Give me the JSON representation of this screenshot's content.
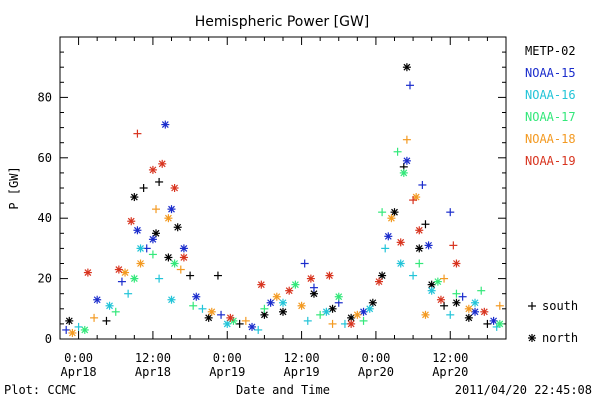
{
  "chart_data": {
    "type": "scatter",
    "title": "Hemispheric Power [GW]",
    "ylabel": "P [GW]",
    "xlabel": "Date and Time",
    "footer_left": "Plot: CCMC",
    "footer_right": "2011/04/20 22:45:08",
    "ylim": [
      0,
      100
    ],
    "yticks": [
      0,
      20,
      40,
      60,
      80
    ],
    "xlim_hours": [
      -3,
      69
    ],
    "xticks": [
      {
        "hour": 0,
        "time": "0:00",
        "date": "Apr18"
      },
      {
        "hour": 12,
        "time": "12:00",
        "date": "Apr18"
      },
      {
        "hour": 24,
        "time": "0:00",
        "date": "Apr19"
      },
      {
        "hour": 36,
        "time": "12:00",
        "date": "Apr19"
      },
      {
        "hour": 48,
        "time": "0:00",
        "date": "Apr20"
      },
      {
        "hour": 60,
        "time": "12:00",
        "date": "Apr20"
      }
    ],
    "legend": {
      "placement": "right",
      "marker_south_label": "south",
      "marker_north_label": "north"
    },
    "series": [
      {
        "name": "METP-02",
        "color": "#000000",
        "values": [
          {
            "x": -1.5,
            "y": 6,
            "m": "x"
          },
          {
            "x": 4.5,
            "y": 6,
            "m": "+"
          },
          {
            "x": 9,
            "y": 47,
            "m": "x"
          },
          {
            "x": 10.5,
            "y": 50,
            "m": "+"
          },
          {
            "x": 12.5,
            "y": 35,
            "m": "x"
          },
          {
            "x": 13,
            "y": 52,
            "m": "+"
          },
          {
            "x": 14.5,
            "y": 27,
            "m": "x"
          },
          {
            "x": 16,
            "y": 37,
            "m": "x"
          },
          {
            "x": 18,
            "y": 21,
            "m": "+"
          },
          {
            "x": 22.5,
            "y": 21,
            "m": "+"
          },
          {
            "x": 21,
            "y": 7,
            "m": "x"
          },
          {
            "x": 26,
            "y": 5,
            "m": "+"
          },
          {
            "x": 30,
            "y": 8,
            "m": "x"
          },
          {
            "x": 33,
            "y": 9,
            "m": "x"
          },
          {
            "x": 38,
            "y": 15,
            "m": "x"
          },
          {
            "x": 41,
            "y": 10,
            "m": "x"
          },
          {
            "x": 44,
            "y": 7,
            "m": "x"
          },
          {
            "x": 47.5,
            "y": 12,
            "m": "x"
          },
          {
            "x": 49,
            "y": 21,
            "m": "x"
          },
          {
            "x": 51,
            "y": 42,
            "m": "x"
          },
          {
            "x": 52.5,
            "y": 57,
            "m": "+"
          },
          {
            "x": 53,
            "y": 90,
            "m": "x"
          },
          {
            "x": 55,
            "y": 30,
            "m": "x"
          },
          {
            "x": 56,
            "y": 38,
            "m": "+"
          },
          {
            "x": 57,
            "y": 18,
            "m": "x"
          },
          {
            "x": 59,
            "y": 11,
            "m": "+"
          },
          {
            "x": 61,
            "y": 12,
            "m": "x"
          },
          {
            "x": 63,
            "y": 7,
            "m": "x"
          },
          {
            "x": 66,
            "y": 5,
            "m": "+"
          }
        ]
      },
      {
        "name": "NOAA-15",
        "color": "#1a2ccc",
        "values": [
          {
            "x": -2,
            "y": 3,
            "m": "+"
          },
          {
            "x": 3,
            "y": 13,
            "m": "x"
          },
          {
            "x": 7,
            "y": 19,
            "m": "+"
          },
          {
            "x": 9.5,
            "y": 36,
            "m": "x"
          },
          {
            "x": 11,
            "y": 30,
            "m": "+"
          },
          {
            "x": 12,
            "y": 33,
            "m": "x"
          },
          {
            "x": 14,
            "y": 71,
            "m": "x"
          },
          {
            "x": 15,
            "y": 43,
            "m": "x"
          },
          {
            "x": 17,
            "y": 30,
            "m": "x"
          },
          {
            "x": 19,
            "y": 14,
            "m": "x"
          },
          {
            "x": 23,
            "y": 8,
            "m": "+"
          },
          {
            "x": 28,
            "y": 4,
            "m": "x"
          },
          {
            "x": 31,
            "y": 12,
            "m": "x"
          },
          {
            "x": 36.5,
            "y": 25,
            "m": "+"
          },
          {
            "x": 38,
            "y": 17,
            "m": "+"
          },
          {
            "x": 42,
            "y": 12,
            "m": "+"
          },
          {
            "x": 46,
            "y": 9,
            "m": "x"
          },
          {
            "x": 50,
            "y": 34,
            "m": "x"
          },
          {
            "x": 53,
            "y": 59,
            "m": "x"
          },
          {
            "x": 53.5,
            "y": 84,
            "m": "+"
          },
          {
            "x": 55.5,
            "y": 51,
            "m": "+"
          },
          {
            "x": 56.5,
            "y": 31,
            "m": "x"
          },
          {
            "x": 60,
            "y": 42,
            "m": "+"
          },
          {
            "x": 62,
            "y": 14,
            "m": "+"
          },
          {
            "x": 64,
            "y": 9,
            "m": "x"
          },
          {
            "x": 67,
            "y": 6,
            "m": "x"
          }
        ]
      },
      {
        "name": "NOAA-16",
        "color": "#22c4d8",
        "values": [
          {
            "x": 0,
            "y": 4,
            "m": "+"
          },
          {
            "x": 5,
            "y": 11,
            "m": "x"
          },
          {
            "x": 8,
            "y": 15,
            "m": "+"
          },
          {
            "x": 10,
            "y": 30,
            "m": "x"
          },
          {
            "x": 13,
            "y": 20,
            "m": "+"
          },
          {
            "x": 15,
            "y": 13,
            "m": "x"
          },
          {
            "x": 20,
            "y": 10,
            "m": "+"
          },
          {
            "x": 24,
            "y": 5,
            "m": "x"
          },
          {
            "x": 29,
            "y": 3,
            "m": "+"
          },
          {
            "x": 33,
            "y": 12,
            "m": "x"
          },
          {
            "x": 37,
            "y": 6,
            "m": "+"
          },
          {
            "x": 40,
            "y": 9,
            "m": "x"
          },
          {
            "x": 43,
            "y": 5,
            "m": "+"
          },
          {
            "x": 47,
            "y": 10,
            "m": "x"
          },
          {
            "x": 49.5,
            "y": 30,
            "m": "+"
          },
          {
            "x": 52,
            "y": 25,
            "m": "x"
          },
          {
            "x": 54,
            "y": 21,
            "m": "+"
          },
          {
            "x": 57,
            "y": 16,
            "m": "x"
          },
          {
            "x": 60,
            "y": 8,
            "m": "+"
          },
          {
            "x": 64,
            "y": 12,
            "m": "x"
          },
          {
            "x": 67.5,
            "y": 4,
            "m": "+"
          }
        ]
      },
      {
        "name": "NOAA-17",
        "color": "#33e87a",
        "values": [
          {
            "x": 1,
            "y": 3,
            "m": "x"
          },
          {
            "x": 6,
            "y": 9,
            "m": "+"
          },
          {
            "x": 9,
            "y": 20,
            "m": "x"
          },
          {
            "x": 12,
            "y": 28,
            "m": "+"
          },
          {
            "x": 15.5,
            "y": 25,
            "m": "x"
          },
          {
            "x": 18.5,
            "y": 11,
            "m": "+"
          },
          {
            "x": 25,
            "y": 6,
            "m": "x"
          },
          {
            "x": 30,
            "y": 10,
            "m": "+"
          },
          {
            "x": 35,
            "y": 18,
            "m": "x"
          },
          {
            "x": 39,
            "y": 8,
            "m": "+"
          },
          {
            "x": 42,
            "y": 14,
            "m": "x"
          },
          {
            "x": 46,
            "y": 6,
            "m": "+"
          },
          {
            "x": 49,
            "y": 42,
            "m": "+"
          },
          {
            "x": 51.5,
            "y": 62,
            "m": "+"
          },
          {
            "x": 52.5,
            "y": 55,
            "m": "x"
          },
          {
            "x": 55,
            "y": 25,
            "m": "+"
          },
          {
            "x": 58,
            "y": 19,
            "m": "x"
          },
          {
            "x": 61,
            "y": 15,
            "m": "+"
          },
          {
            "x": 65,
            "y": 16,
            "m": "+"
          },
          {
            "x": 68,
            "y": 5,
            "m": "x"
          }
        ]
      },
      {
        "name": "NOAA-18",
        "color": "#f39a22",
        "values": [
          {
            "x": -1,
            "y": 2,
            "m": "x"
          },
          {
            "x": 2.5,
            "y": 7,
            "m": "+"
          },
          {
            "x": 7.5,
            "y": 22,
            "m": "x"
          },
          {
            "x": 10,
            "y": 25,
            "m": "x"
          },
          {
            "x": 12.5,
            "y": 43,
            "m": "+"
          },
          {
            "x": 14.5,
            "y": 40,
            "m": "x"
          },
          {
            "x": 16.5,
            "y": 23,
            "m": "+"
          },
          {
            "x": 21.5,
            "y": 9,
            "m": "x"
          },
          {
            "x": 27,
            "y": 6,
            "m": "+"
          },
          {
            "x": 32,
            "y": 14,
            "m": "x"
          },
          {
            "x": 36,
            "y": 11,
            "m": "x"
          },
          {
            "x": 41,
            "y": 5,
            "m": "+"
          },
          {
            "x": 45,
            "y": 8,
            "m": "x"
          },
          {
            "x": 50.5,
            "y": 40,
            "m": "x"
          },
          {
            "x": 53,
            "y": 66,
            "m": "+"
          },
          {
            "x": 54.5,
            "y": 47,
            "m": "x"
          },
          {
            "x": 56,
            "y": 8,
            "m": "x"
          },
          {
            "x": 59,
            "y": 20,
            "m": "+"
          },
          {
            "x": 63,
            "y": 10,
            "m": "x"
          },
          {
            "x": 68,
            "y": 11,
            "m": "+"
          }
        ]
      },
      {
        "name": "NOAA-19",
        "color": "#d8341f",
        "values": [
          {
            "x": 1.5,
            "y": 22,
            "m": "x"
          },
          {
            "x": 6.5,
            "y": 23,
            "m": "x"
          },
          {
            "x": 8.5,
            "y": 39,
            "m": "x"
          },
          {
            "x": 9.5,
            "y": 68,
            "m": "+"
          },
          {
            "x": 12,
            "y": 56,
            "m": "x"
          },
          {
            "x": 13.5,
            "y": 58,
            "m": "x"
          },
          {
            "x": 15.5,
            "y": 50,
            "m": "x"
          },
          {
            "x": 17,
            "y": 27,
            "m": "x"
          },
          {
            "x": 24.5,
            "y": 7,
            "m": "x"
          },
          {
            "x": 29.5,
            "y": 18,
            "m": "x"
          },
          {
            "x": 34,
            "y": 16,
            "m": "x"
          },
          {
            "x": 37.5,
            "y": 20,
            "m": "x"
          },
          {
            "x": 40.5,
            "y": 21,
            "m": "x"
          },
          {
            "x": 44,
            "y": 5,
            "m": "x"
          },
          {
            "x": 48.5,
            "y": 19,
            "m": "x"
          },
          {
            "x": 52,
            "y": 32,
            "m": "x"
          },
          {
            "x": 54,
            "y": 46,
            "m": "+"
          },
          {
            "x": 55,
            "y": 36,
            "m": "x"
          },
          {
            "x": 58.5,
            "y": 13,
            "m": "x"
          },
          {
            "x": 60.5,
            "y": 31,
            "m": "+"
          },
          {
            "x": 61,
            "y": 25,
            "m": "x"
          },
          {
            "x": 65.5,
            "y": 9,
            "m": "x"
          }
        ]
      }
    ]
  }
}
